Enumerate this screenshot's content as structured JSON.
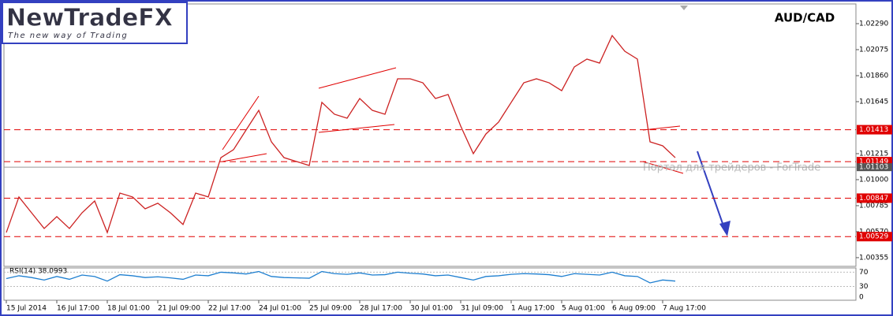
{
  "logo": {
    "name": "NewTradeFX",
    "tagline": "The new way of Trading"
  },
  "watermark": "Портал для трейдеров - ForTrade",
  "chart_data": {
    "type": "line",
    "title": "AUD/CAD",
    "categories": [
      "15 Jul 2014",
      null,
      null,
      null,
      "16 Jul 17:00",
      null,
      null,
      null,
      "18 Jul 01:00",
      null,
      null,
      null,
      "21 Jul 09:00",
      null,
      null,
      null,
      "22 Jul 17:00",
      null,
      null,
      null,
      "24 Jul 01:00",
      null,
      null,
      null,
      "25 Jul 09:00",
      null,
      null,
      null,
      "28 Jul 17:00",
      null,
      null,
      null,
      "30 Jul 01:00",
      null,
      null,
      null,
      "31 Jul 09:00",
      null,
      null,
      null,
      "1 Aug 17:00",
      null,
      null,
      null,
      "5 Aug 01:00",
      null,
      null,
      null,
      "6 Aug 09:00",
      null,
      null,
      null,
      "7 Aug 17:00",
      null,
      null,
      null
    ],
    "series": [
      {
        "name": "AUD/CAD",
        "color": "#cc2222",
        "values": [
          1.00563,
          1.00857,
          1.00726,
          1.00596,
          1.00694,
          1.00596,
          1.00726,
          1.00824,
          1.00563,
          1.00889,
          1.00857,
          1.00759,
          1.00805,
          1.00726,
          1.00629,
          1.00889,
          1.00857,
          1.01182,
          1.01248,
          1.01411,
          1.01573,
          1.01313,
          1.01182,
          1.0115,
          1.01117,
          1.01639,
          1.01541,
          1.01508,
          1.01671,
          1.01573,
          1.01541,
          1.01834,
          1.01834,
          1.01801,
          1.01671,
          1.01704,
          1.01443,
          1.01215,
          1.01378,
          1.01476,
          1.01639,
          1.01801,
          1.01834,
          1.01801,
          1.01736,
          1.01932,
          1.01997,
          1.01964,
          1.02192,
          1.02062,
          1.01997,
          1.01313,
          1.0128,
          1.01182,
          null,
          null
        ]
      }
    ],
    "ylim": [
      1.02453,
      1.00283
    ],
    "yticks": [
      {
        "value": 1.0229,
        "label": "1.02290"
      },
      {
        "value": 1.02075,
        "label": "1.02075"
      },
      {
        "value": 1.0186,
        "label": "1.01860"
      },
      {
        "value": 1.01645,
        "label": "1.01645"
      },
      {
        "value": 1.01215,
        "label": "1.01215"
      },
      {
        "value": 1.01,
        "label": "1.01000"
      },
      {
        "value": 1.00785,
        "label": "1.00785"
      },
      {
        "value": 1.0057,
        "label": "1.00570"
      },
      {
        "value": 1.00355,
        "label": "1.00355"
      }
    ],
    "levels": [
      1.01413,
      1.01149,
      1.00847,
      1.00529
    ],
    "level_color": "#e00000",
    "current_price": 1.01103,
    "rsi": {
      "label": "RSI(14) 38.0993",
      "color": "#1e7fd0",
      "ylim": [
        0,
        82
      ],
      "yticks": [
        0,
        30,
        70
      ],
      "values": [
        52,
        60,
        55,
        48,
        58,
        50,
        62,
        58,
        45,
        63,
        60,
        55,
        57,
        54,
        50,
        62,
        60,
        70,
        68,
        65,
        72,
        58,
        55,
        54,
        53,
        72,
        66,
        64,
        68,
        62,
        63,
        70,
        67,
        65,
        60,
        62,
        55,
        48,
        58,
        60,
        64,
        66,
        65,
        63,
        58,
        66,
        64,
        62,
        70,
        60,
        58,
        40,
        48,
        45,
        null,
        null
      ]
    }
  }
}
